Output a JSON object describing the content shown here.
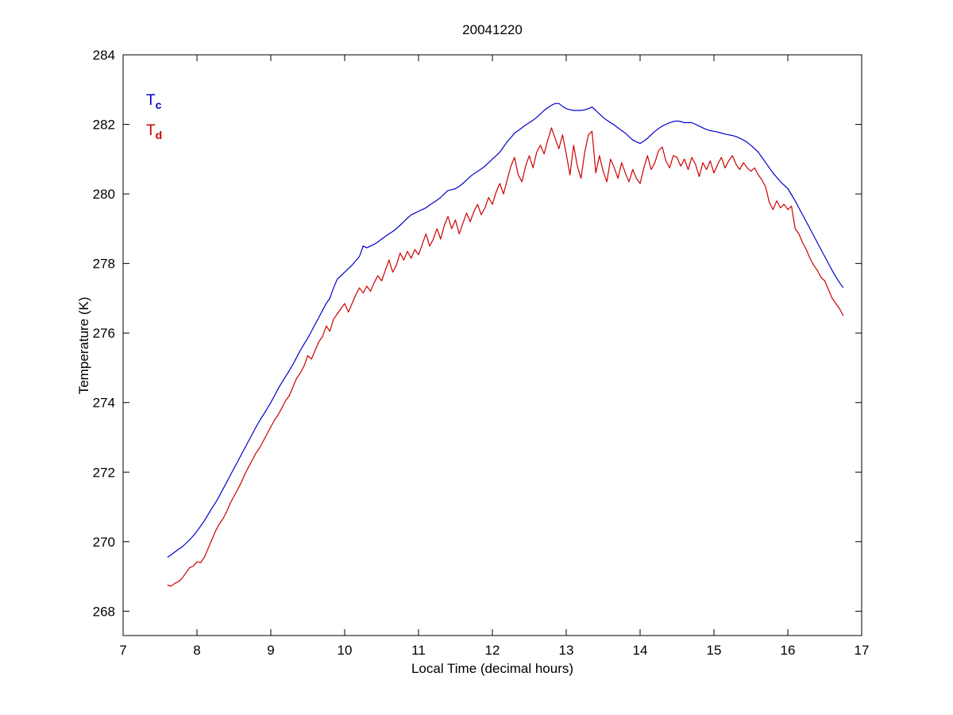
{
  "figure": {
    "background": "#ffffff",
    "axis_color": "#000000"
  },
  "chart_data": {
    "type": "line",
    "title": "20041220",
    "xlabel": "Local Time (decimal hours)",
    "ylabel": "Temperature (K)",
    "xlim": [
      7,
      17
    ],
    "ylim": [
      267.3,
      284
    ],
    "xticks": [
      7,
      8,
      9,
      10,
      11,
      12,
      13,
      14,
      15,
      16,
      17
    ],
    "yticks": [
      268,
      270,
      272,
      274,
      276,
      278,
      280,
      282,
      284
    ],
    "grid": false,
    "legend": {
      "position": "top-left-inside",
      "entries": [
        {
          "label": "T_c",
          "base": "T",
          "sub": "c",
          "color": "#0000cc"
        },
        {
          "label": "T_d",
          "base": "T",
          "sub": "d",
          "color": "#cc0000"
        }
      ]
    },
    "x": [
      7.6,
      7.65,
      7.7,
      7.75,
      7.8,
      7.85,
      7.9,
      7.95,
      8,
      8.05,
      8.1,
      8.15,
      8.2,
      8.25,
      8.3,
      8.35,
      8.4,
      8.45,
      8.5,
      8.55,
      8.6,
      8.65,
      8.7,
      8.75,
      8.8,
      8.85,
      8.9,
      8.95,
      9,
      9.05,
      9.1,
      9.15,
      9.2,
      9.25,
      9.3,
      9.35,
      9.4,
      9.45,
      9.5,
      9.55,
      9.6,
      9.65,
      9.7,
      9.75,
      9.8,
      9.85,
      9.9,
      9.95,
      10,
      10.05,
      10.1,
      10.15,
      10.2,
      10.25,
      10.3,
      10.35,
      10.4,
      10.45,
      10.5,
      10.55,
      10.6,
      10.65,
      10.7,
      10.75,
      10.8,
      10.85,
      10.9,
      10.95,
      11,
      11.05,
      11.1,
      11.15,
      11.2,
      11.25,
      11.3,
      11.35,
      11.4,
      11.45,
      11.5,
      11.55,
      11.6,
      11.65,
      11.7,
      11.75,
      11.8,
      11.85,
      11.9,
      11.95,
      12,
      12.05,
      12.1,
      12.15,
      12.2,
      12.25,
      12.3,
      12.35,
      12.4,
      12.45,
      12.5,
      12.55,
      12.6,
      12.65,
      12.7,
      12.75,
      12.8,
      12.85,
      12.9,
      12.95,
      13,
      13.05,
      13.1,
      13.15,
      13.2,
      13.25,
      13.3,
      13.35,
      13.4,
      13.45,
      13.5,
      13.55,
      13.6,
      13.65,
      13.7,
      13.75,
      13.8,
      13.85,
      13.9,
      13.95,
      14,
      14.05,
      14.1,
      14.15,
      14.2,
      14.25,
      14.3,
      14.35,
      14.4,
      14.45,
      14.5,
      14.55,
      14.6,
      14.65,
      14.7,
      14.75,
      14.8,
      14.85,
      14.9,
      14.95,
      15,
      15.05,
      15.1,
      15.15,
      15.2,
      15.25,
      15.3,
      15.35,
      15.4,
      15.45,
      15.5,
      15.55,
      15.6,
      15.65,
      15.7,
      15.75,
      15.8,
      15.85,
      15.9,
      15.95,
      16,
      16.05,
      16.1,
      16.15,
      16.2,
      16.25,
      16.3,
      16.35,
      16.4,
      16.45,
      16.5,
      16.55,
      16.6,
      16.65,
      16.7,
      16.75
    ],
    "series": [
      {
        "name": "T_c",
        "color": "#0000cc",
        "values": [
          269.55,
          269.62,
          269.7,
          269.78,
          269.85,
          269.95,
          270.05,
          270.17,
          270.3,
          270.45,
          270.6,
          270.78,
          270.95,
          271.12,
          271.3,
          271.5,
          271.7,
          271.9,
          272.1,
          272.3,
          272.5,
          272.7,
          272.9,
          273.1,
          273.3,
          273.48,
          273.65,
          273.82,
          274,
          274.2,
          274.4,
          274.58,
          274.75,
          274.92,
          275.1,
          275.3,
          275.5,
          275.68,
          275.85,
          276.05,
          276.25,
          276.45,
          276.65,
          276.85,
          277,
          277.3,
          277.55,
          277.65,
          277.75,
          277.85,
          277.95,
          278.08,
          278.2,
          278.5,
          278.45,
          278.5,
          278.55,
          278.62,
          278.7,
          278.78,
          278.85,
          278.92,
          279,
          279.1,
          279.2,
          279.3,
          279.4,
          279.45,
          279.5,
          279.55,
          279.6,
          279.68,
          279.75,
          279.82,
          279.9,
          280,
          280.1,
          280.12,
          280.15,
          280.22,
          280.3,
          280.4,
          280.5,
          280.58,
          280.65,
          280.72,
          280.8,
          280.9,
          281,
          281.1,
          281.2,
          281.35,
          281.5,
          281.62,
          281.75,
          281.82,
          281.9,
          281.98,
          282.05,
          282.12,
          282.2,
          282.3,
          282.4,
          282.48,
          282.55,
          282.6,
          282.6,
          282.52,
          282.45,
          282.42,
          282.4,
          282.4,
          282.4,
          282.42,
          282.45,
          282.5,
          282.4,
          282.3,
          282.2,
          282.12,
          282.05,
          281.98,
          281.9,
          281.82,
          281.75,
          281.65,
          281.55,
          281.5,
          281.45,
          281.52,
          281.6,
          281.7,
          281.8,
          281.88,
          281.95,
          282,
          282.05,
          282.08,
          282.1,
          282.08,
          282.05,
          282.05,
          282.05,
          282,
          281.95,
          281.9,
          281.85,
          281.82,
          281.8,
          281.78,
          281.75,
          281.72,
          281.7,
          281.68,
          281.65,
          281.6,
          281.55,
          281.48,
          281.4,
          281.3,
          281.2,
          281.05,
          280.9,
          280.75,
          280.6,
          280.48,
          280.35,
          280.25,
          280.15,
          279.98,
          279.8,
          279.6,
          279.4,
          279.2,
          279,
          278.8,
          278.6,
          278.4,
          278.2,
          278,
          277.8,
          277.62,
          277.45,
          277.3
        ]
      },
      {
        "name": "T_d",
        "color": "#cc0000",
        "values": [
          268.75,
          268.72,
          268.8,
          268.85,
          268.95,
          269.1,
          269.25,
          269.3,
          269.42,
          269.4,
          269.55,
          269.8,
          270.05,
          270.3,
          270.5,
          270.65,
          270.85,
          271.1,
          271.3,
          271.5,
          271.7,
          271.95,
          272.15,
          272.35,
          272.55,
          272.7,
          272.9,
          273.1,
          273.3,
          273.5,
          273.65,
          273.85,
          274.05,
          274.2,
          274.45,
          274.7,
          274.85,
          275.05,
          275.35,
          275.25,
          275.5,
          275.75,
          275.9,
          276.2,
          276.05,
          276.4,
          276.55,
          276.7,
          276.85,
          276.6,
          276.85,
          277.1,
          277.3,
          277.15,
          277.35,
          277.2,
          277.45,
          277.65,
          277.5,
          277.8,
          278.1,
          277.75,
          277.95,
          278.3,
          278.1,
          278.35,
          278.15,
          278.4,
          278.25,
          278.55,
          278.85,
          278.5,
          278.7,
          279,
          278.7,
          279.1,
          279.35,
          279,
          279.25,
          278.85,
          279.15,
          279.45,
          279.2,
          279.5,
          279.7,
          279.4,
          279.6,
          279.9,
          279.7,
          280.05,
          280.3,
          280,
          280.4,
          280.8,
          281.05,
          280.55,
          280.35,
          280.8,
          281.1,
          280.75,
          281.2,
          281.4,
          281.15,
          281.55,
          281.9,
          281.6,
          281.3,
          281.7,
          281.15,
          280.55,
          281.4,
          280.8,
          280.45,
          281.2,
          281.7,
          281.8,
          280.6,
          281.1,
          280.65,
          280.35,
          281,
          280.75,
          280.45,
          280.9,
          280.6,
          280.35,
          280.7,
          280.45,
          280.3,
          280.75,
          281.1,
          280.7,
          280.9,
          281.25,
          281.35,
          280.95,
          280.75,
          281.1,
          281.05,
          280.8,
          281,
          280.7,
          281.05,
          280.85,
          280.5,
          280.9,
          280.7,
          280.95,
          280.6,
          280.85,
          281.05,
          280.75,
          280.95,
          281.1,
          280.85,
          280.7,
          280.9,
          280.75,
          280.65,
          280.75,
          280.55,
          280.4,
          280.2,
          279.75,
          279.55,
          279.8,
          279.6,
          279.7,
          279.55,
          279.65,
          279,
          278.85,
          278.6,
          278.4,
          278.15,
          277.95,
          277.8,
          277.6,
          277.5,
          277.25,
          277,
          276.85,
          276.7,
          276.5
        ]
      }
    ]
  }
}
